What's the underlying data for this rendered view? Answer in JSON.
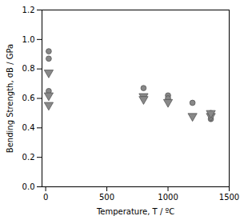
{
  "chart_data": {
    "type": "scatter",
    "xlabel": "Temperature, T / ºC",
    "ylabel": "Bending Strength, σB / GPa",
    "xlim": [
      -30,
      1500
    ],
    "ylim": [
      0,
      1.2
    ],
    "xticks": [
      0,
      500,
      1000,
      1500
    ],
    "yticks": [
      {
        "value": 0,
        "label": "0.0"
      },
      0.2,
      0.4,
      0.6,
      0.8,
      {
        "value": 1.0,
        "label": "1.0"
      },
      1.2
    ],
    "series": [
      {
        "marker": "circle",
        "color": "#888888",
        "x": [
          25,
          25,
          25,
          800,
          1000,
          1000,
          1200,
          1350,
          1350
        ],
        "values": [
          0.92,
          0.87,
          0.65,
          0.67,
          0.62,
          0.6,
          0.57,
          0.46,
          0.5
        ]
      },
      {
        "marker": "triangle-down",
        "color": "#888888",
        "x": [
          25,
          25,
          25,
          800,
          800,
          1000,
          1200,
          1350,
          1350
        ],
        "values": [
          0.775,
          0.62,
          0.555,
          0.615,
          0.595,
          0.575,
          0.48,
          0.48,
          0.5
        ]
      }
    ]
  }
}
